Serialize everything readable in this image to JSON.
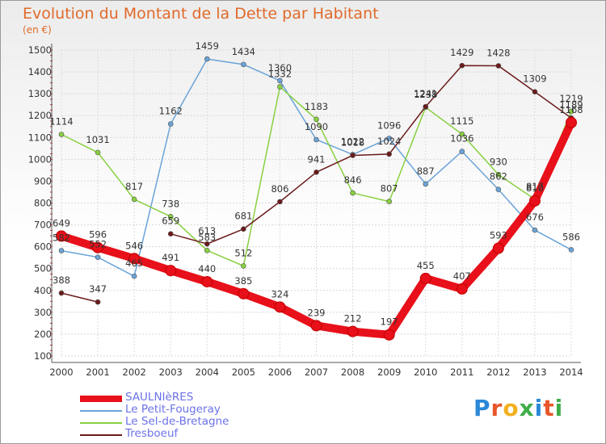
{
  "title": "Evolution du Montant de la Dette par Habitant",
  "subtitle": "(en €)",
  "logo": {
    "text": "Proxiti",
    "colors": [
      "#2b88d8",
      "#e8562a",
      "#f2b01e",
      "#3fae49",
      "#2b88d8",
      "#e8562a",
      "#3fae49"
    ]
  },
  "chart_data": {
    "type": "line",
    "title": "Evolution du Montant de la Dette par Habitant",
    "ylabel": "(en €)",
    "xlabel": "",
    "x": [
      "2000",
      "2001",
      "2002",
      "2003",
      "2004",
      "2005",
      "2006",
      "2007",
      "2008",
      "2009",
      "2010",
      "2011",
      "2012",
      "2013",
      "2014"
    ],
    "ylim": [
      100,
      1500
    ],
    "yticks": [
      100,
      200,
      300,
      400,
      500,
      600,
      700,
      800,
      900,
      1000,
      1100,
      1200,
      1300,
      1400,
      1500
    ],
    "grid": true,
    "legend": "bottom-left",
    "series": [
      {
        "name": "SAULNIèRES",
        "color": "#e8101a",
        "values": [
          649,
          596,
          546,
          491,
          440,
          385,
          324,
          239,
          212,
          197,
          455,
          407,
          593,
          810,
          1168
        ]
      },
      {
        "name": "Le Petit-Fougeray",
        "color": "#6aa3d8",
        "values": [
          582,
          552,
          465,
          1162,
          1459,
          1434,
          1360,
          1090,
          1022,
          1096,
          887,
          1036,
          862,
          676,
          586
        ]
      },
      {
        "name": "Le Sel-de-Bretagne",
        "color": "#88d040",
        "values": [
          1114,
          1031,
          817,
          738,
          583,
          512,
          1332,
          1183,
          846,
          807,
          1238,
          1115,
          930,
          817,
          1219
        ]
      },
      {
        "name": "Tresboeuf",
        "color": "#6b1a1a",
        "values": [
          388,
          347,
          null,
          659,
          613,
          681,
          806,
          941,
          1018,
          1024,
          1241,
          1429,
          1428,
          1309,
          1189
        ]
      }
    ]
  }
}
